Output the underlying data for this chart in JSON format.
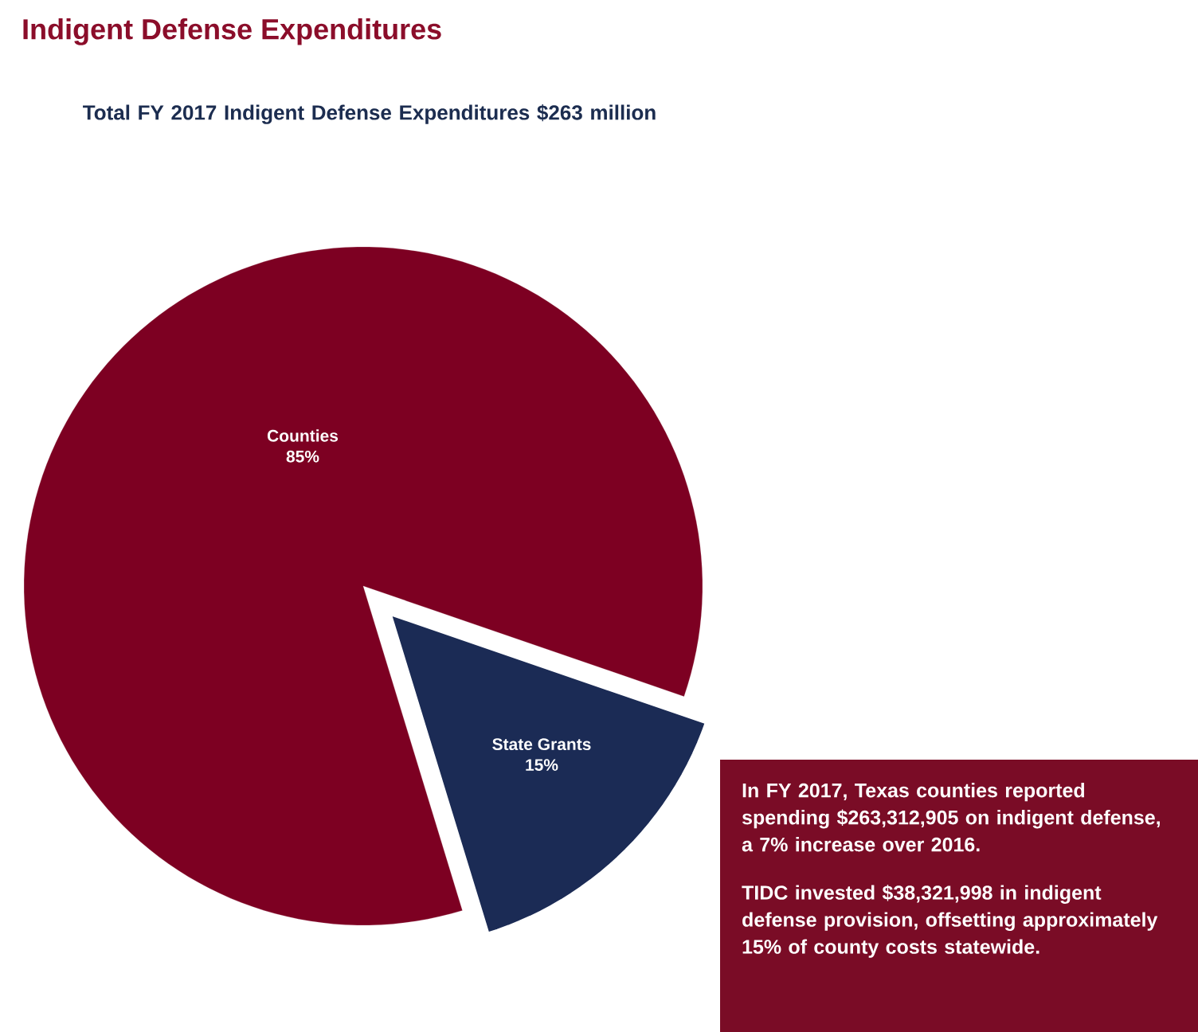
{
  "chart_data": {
    "type": "pie",
    "title": "Indigent Defense Expenditures",
    "subtitle": "Total FY 2017 Indigent Defense Expenditures $263 million",
    "categories": [
      "Counties",
      "State Grants"
    ],
    "values": [
      85,
      15
    ],
    "colors": [
      "#7d0022",
      "#1b2b55"
    ],
    "value_labels": [
      "85%",
      "15%"
    ],
    "annotations": [
      "In FY 2017, Texas counties reported spending $263,312,905 on indigent defense, a 7% increase over 2016.",
      "TIDC invested $38,321,998 in indigent defense provision, offsetting approximately 15% of county costs statewide."
    ]
  }
}
